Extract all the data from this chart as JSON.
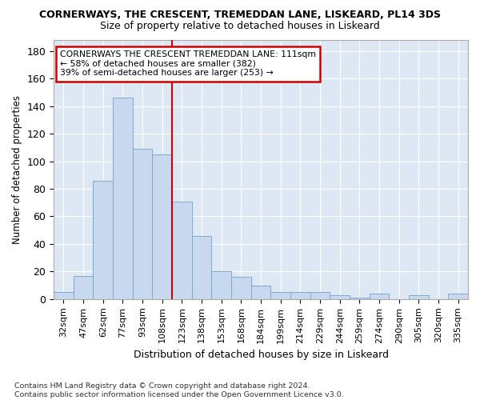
{
  "title": "CORNERWAYS, THE CRESCENT, TREMEDDAN LANE, LISKEARD, PL14 3DS",
  "subtitle": "Size of property relative to detached houses in Liskeard",
  "xlabel": "Distribution of detached houses by size in Liskeard",
  "ylabel": "Number of detached properties",
  "bar_color": "#c8d8ee",
  "bar_edge_color": "#7eaacc",
  "bg_color": "#dde8f4",
  "grid_color": "#ffffff",
  "annotation_text": "CORNERWAYS THE CRESCENT TREMEDDAN LANE: 111sqm\n← 58% of detached houses are smaller (382)\n39% of semi-detached houses are larger (253) →",
  "annotation_box_color": "#ffffff",
  "annotation_box_edge": "#cc0000",
  "marker_color": "#cc0000",
  "categories": [
    "32sqm",
    "47sqm",
    "62sqm",
    "77sqm",
    "93sqm",
    "108sqm",
    "123sqm",
    "138sqm",
    "153sqm",
    "168sqm",
    "184sqm",
    "199sqm",
    "214sqm",
    "229sqm",
    "244sqm",
    "259sqm",
    "274sqm",
    "290sqm",
    "305sqm",
    "320sqm",
    "335sqm"
  ],
  "values": [
    5,
    17,
    86,
    146,
    109,
    105,
    71,
    46,
    20,
    16,
    10,
    5,
    5,
    5,
    3,
    1,
    4,
    0,
    3,
    0,
    4
  ],
  "redline_x": 5.5,
  "ylim": [
    0,
    188
  ],
  "yticks": [
    0,
    20,
    40,
    60,
    80,
    100,
    120,
    140,
    160,
    180
  ],
  "footnote": "Contains HM Land Registry data © Crown copyright and database right 2024.\nContains public sector information licensed under the Open Government Licence v3.0.",
  "fig_facecolor": "#ffffff",
  "title_fontsize": 9,
  "subtitle_fontsize": 9
}
